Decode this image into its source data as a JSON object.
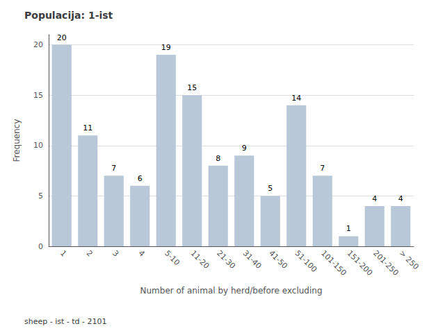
{
  "chart_data": {
    "type": "bar",
    "title": "Populacija: 1-ist",
    "footer": "sheep - ist - td - 2101",
    "xlabel": "Number of animal by herd/before excluding",
    "ylabel": "Frequency",
    "categories": [
      "1",
      "2",
      "3",
      "4",
      "5-10",
      "11-20",
      "21-30",
      "31-40",
      "41-50",
      "51-100",
      "101-150",
      "151-200",
      "201-250",
      "> 250"
    ],
    "values": [
      20,
      11,
      7,
      6,
      19,
      15,
      8,
      9,
      5,
      14,
      7,
      1,
      4,
      4
    ],
    "color": "#b8c8d8",
    "ylim": [
      0,
      21
    ],
    "yticks": [
      0,
      5,
      10,
      15,
      20
    ],
    "grid": true,
    "data_labels": true
  }
}
